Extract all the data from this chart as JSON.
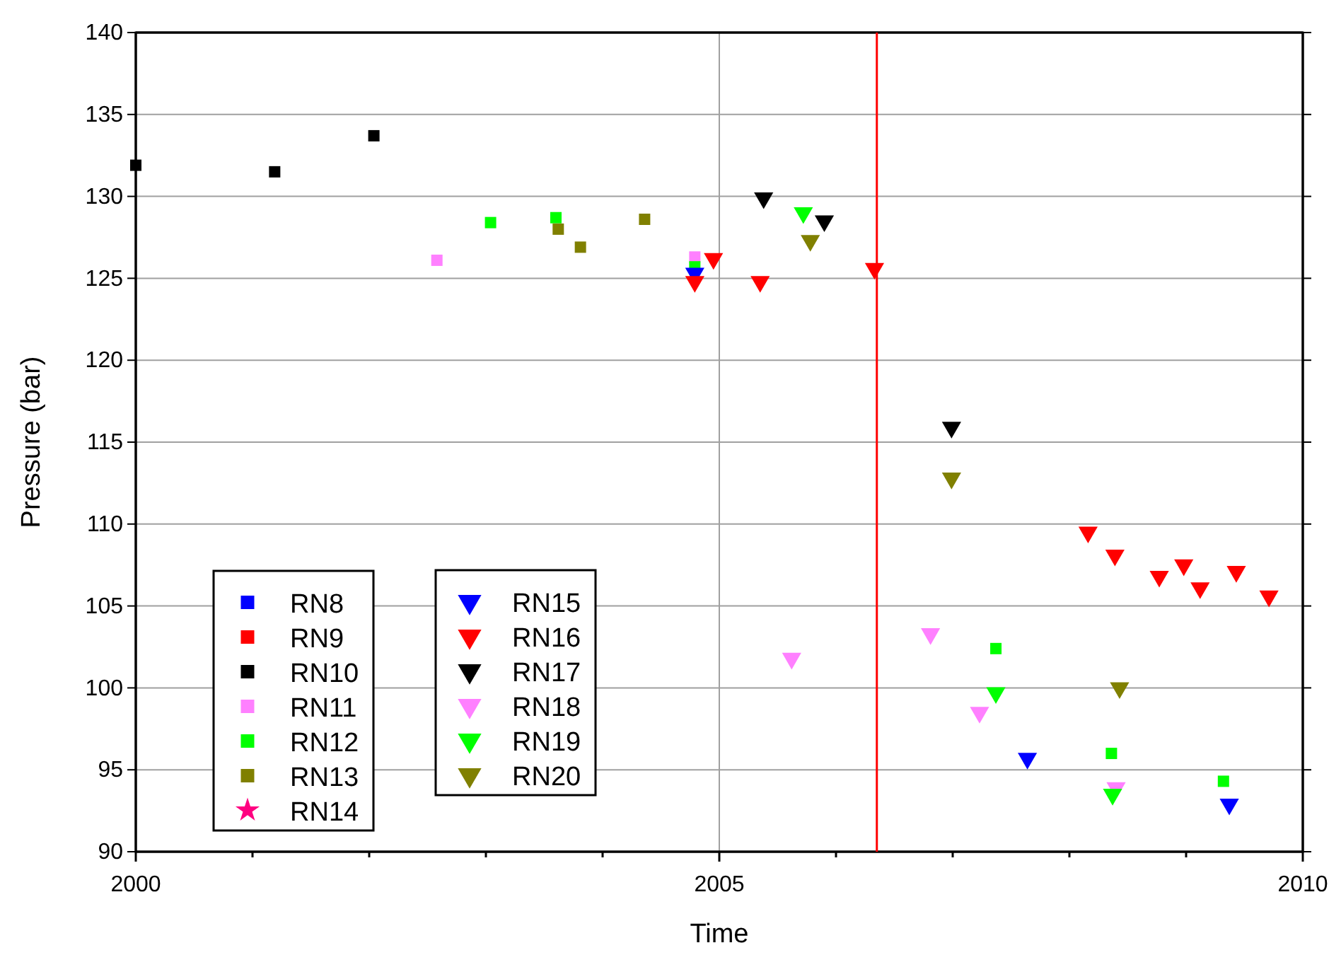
{
  "chart_data": {
    "type": "scatter",
    "xlabel": "Time",
    "ylabel": "Pressure (bar)",
    "xlim": [
      2000,
      2010
    ],
    "ylim": [
      90,
      140
    ],
    "xticks": [
      2000,
      {
        "value": 2001,
        "label": null
      },
      {
        "value": 2002,
        "label": null
      },
      {
        "value": 2003,
        "label": null
      },
      {
        "value": 2004,
        "label": null
      },
      2005,
      {
        "value": 2006,
        "label": null
      },
      {
        "value": 2007,
        "label": null
      },
      {
        "value": 2008,
        "label": null
      },
      {
        "value": 2009,
        "label": null
      },
      2010
    ],
    "yticks": [
      90,
      95,
      100,
      105,
      110,
      115,
      120,
      125,
      130,
      135,
      140
    ],
    "grid": true,
    "legend": "bottom left",
    "ref_lines": [
      {
        "axis": "x",
        "value": 2006.35,
        "color": "#ff0000"
      }
    ],
    "series": [
      {
        "name": "RN8",
        "color": "#0000ff",
        "marker": "square"
      },
      {
        "name": "RN9",
        "color": "#ff0000",
        "marker": "square"
      },
      {
        "name": "RN10",
        "color": "#000000",
        "marker": "square",
        "x": [
          2000.0,
          2001.19,
          2002.04
        ],
        "values": [
          131.9,
          131.5,
          133.7
        ]
      },
      {
        "name": "RN11",
        "color": "#ff80ff",
        "marker": "square",
        "x": [
          2002.58,
          2004.79
        ],
        "values": [
          126.1,
          126.3
        ]
      },
      {
        "name": "RN12",
        "color": "#00ff00",
        "marker": "square",
        "x": [
          2003.04,
          2003.6,
          2004.79,
          2007.37,
          2008.36,
          2009.32
        ],
        "values": [
          128.4,
          128.7,
          125.7,
          102.4,
          96.0,
          94.3
        ]
      },
      {
        "name": "RN13",
        "color": "#808000",
        "marker": "square",
        "x": [
          2003.62,
          2003.81,
          2004.36
        ],
        "values": [
          128.0,
          126.9,
          128.6
        ]
      },
      {
        "name": "RN14",
        "color": "#ff0080",
        "marker": "star"
      },
      {
        "name": "RN15",
        "color": "#0000ff",
        "marker": "triangle",
        "x": [
          2004.79,
          2007.64,
          2009.37
        ],
        "values": [
          125.3,
          95.7,
          92.9
        ]
      },
      {
        "name": "RN16",
        "color": "#ff0000",
        "marker": "triangle",
        "x": [
          2004.79,
          2004.95,
          2005.35,
          2006.33,
          2008.16,
          2008.39,
          2008.77,
          2008.98,
          2009.12,
          2009.43,
          2009.71
        ],
        "values": [
          124.8,
          126.2,
          124.8,
          125.6,
          109.5,
          108.1,
          106.8,
          107.5,
          106.1,
          107.1,
          105.6
        ]
      },
      {
        "name": "RN17",
        "color": "#000000",
        "marker": "triangle",
        "x": [
          2005.38,
          2005.9,
          2006.99
        ],
        "values": [
          129.9,
          128.5,
          115.9
        ]
      },
      {
        "name": "RN18",
        "color": "#ff80ff",
        "marker": "triangle",
        "x": [
          2005.62,
          2006.81,
          2007.23,
          2008.4
        ],
        "values": [
          101.8,
          103.3,
          98.5,
          93.9
        ]
      },
      {
        "name": "RN19",
        "color": "#00ff00",
        "marker": "triangle",
        "x": [
          2005.72,
          2007.37,
          2008.37
        ],
        "values": [
          129.0,
          99.7,
          93.5
        ]
      },
      {
        "name": "RN20",
        "color": "#808000",
        "marker": "triangle",
        "x": [
          2005.78,
          2006.99,
          2008.43
        ],
        "values": [
          127.3,
          112.8,
          100.0
        ]
      }
    ]
  }
}
